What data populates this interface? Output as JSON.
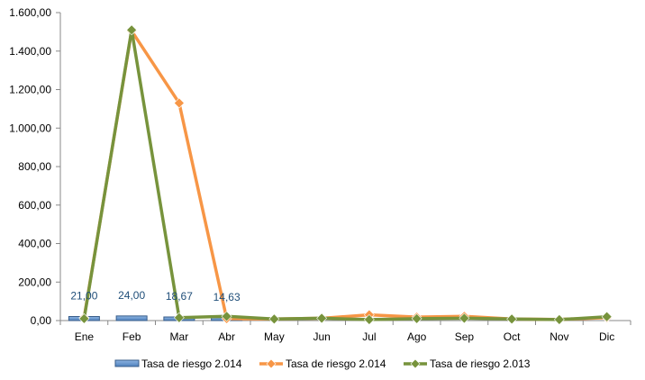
{
  "chart_data": {
    "type": "bar",
    "categories": [
      "Ene",
      "Feb",
      "Mar",
      "Abr",
      "May",
      "Jun",
      "Jul",
      "Ago",
      "Sep",
      "Oct",
      "Nov",
      "Dic"
    ],
    "ylim": [
      0,
      1600
    ],
    "yticks": [
      "0,00",
      "200,00",
      "400,00",
      "600,00",
      "800,00",
      "1.000,00",
      "1.200,00",
      "1.400,00",
      "1.600,00"
    ],
    "series": [
      {
        "name": "Tasa de riesgo 2.014",
        "type": "bar",
        "color": "#4f81bd",
        "values": [
          21.0,
          24.0,
          18.67,
          14.63,
          null,
          null,
          null,
          null,
          null,
          null,
          null,
          null
        ],
        "labels": [
          "21,00",
          "24,00",
          "18,67",
          "14,63"
        ]
      },
      {
        "name": "Tasa de riesgo 2.014",
        "type": "line",
        "color": "#f79646",
        "values": [
          15,
          1505,
          1130,
          10,
          8,
          12,
          30,
          18,
          22,
          8,
          6,
          15
        ]
      },
      {
        "name": "Tasa de riesgo 2.013",
        "type": "line",
        "color": "#77933c",
        "values": [
          10,
          1510,
          15,
          22,
          8,
          12,
          5,
          10,
          12,
          8,
          5,
          20
        ]
      }
    ],
    "grid": false,
    "legend": "bottom"
  }
}
